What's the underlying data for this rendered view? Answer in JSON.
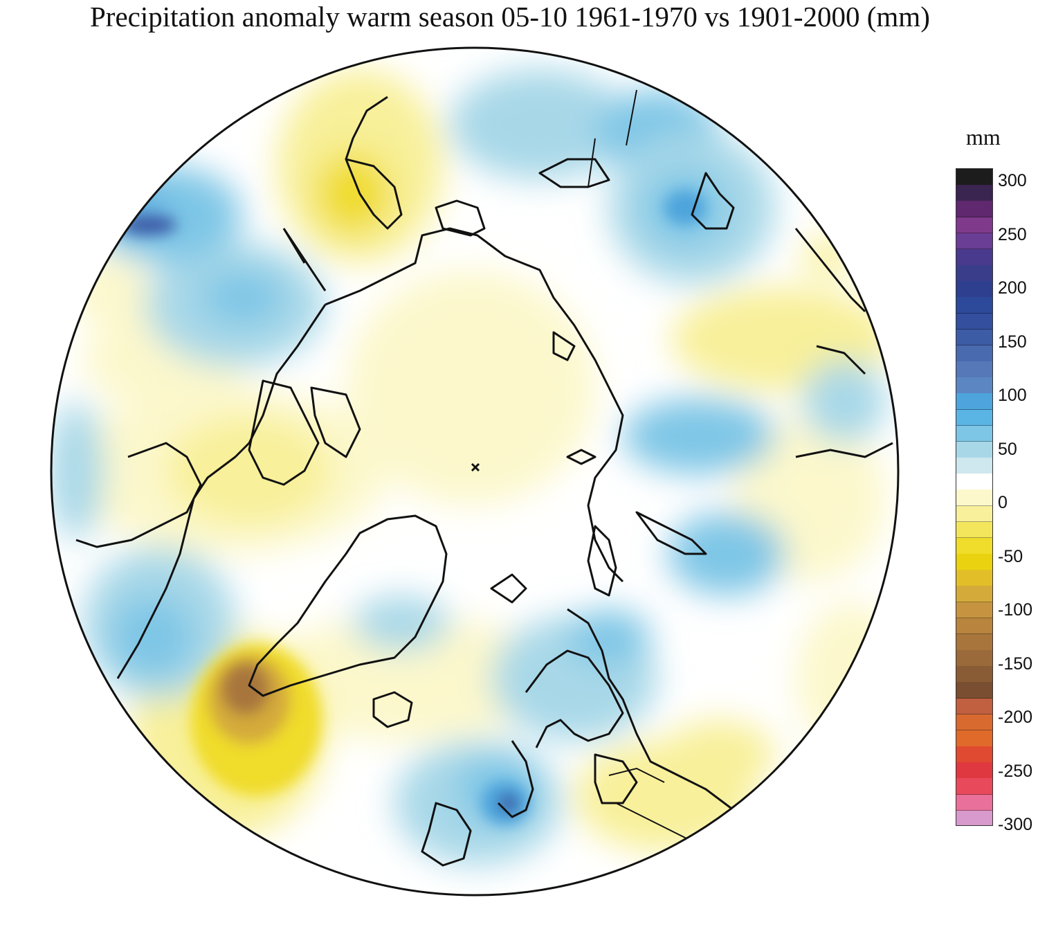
{
  "title": "Precipitation anomaly warm season 05-10 1961-1970 vs 1901-2000 (mm)",
  "legend": {
    "unit": "mm",
    "ticks": [
      "300",
      "250",
      "200",
      "150",
      "100",
      "50",
      "0",
      "-50",
      "-100",
      "-150",
      "-200",
      "-250",
      "-300"
    ],
    "colors": [
      "#1c1c1c",
      "#3a2450",
      "#60286f",
      "#803a8c",
      "#6a3e94",
      "#4a3a8e",
      "#3a3e8a",
      "#2e3f8f",
      "#2d4a9a",
      "#344f9d",
      "#3d5ca6",
      "#4a6aaf",
      "#5678b8",
      "#5b86c2",
      "#4ea4dc",
      "#5ab4e4",
      "#7ec6e6",
      "#a8d8e8",
      "#cfe7ee",
      "#ffffff",
      "#fcf8cc",
      "#f8f09a",
      "#f4e65c",
      "#f0dc2a",
      "#ead210",
      "#e2bf28",
      "#d4aa3a",
      "#c69440",
      "#b8843e",
      "#a8763c",
      "#9a6a3a",
      "#8a5c36",
      "#7a4e30",
      "#c06040",
      "#d86a30",
      "#e06a2a",
      "#e04a30",
      "#e03840",
      "#e84a5c",
      "#e8709a",
      "#d89acc"
    ],
    "scale": "mm"
  },
  "map": {
    "projection": "north-polar-stereographic",
    "region": "Northern Hemisphere",
    "positive_color": "#4ea4dc",
    "negative_color": "#f0dc2a",
    "max_positive_anomaly": 210,
    "max_negative_anomaly": -150
  }
}
